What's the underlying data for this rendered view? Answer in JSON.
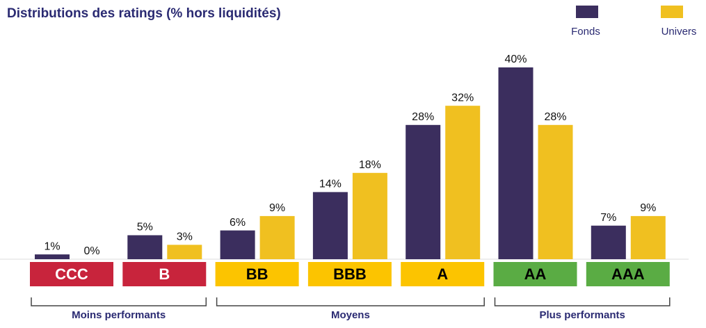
{
  "chart_data": {
    "type": "bar",
    "title": "Distributions des ratings (% hors liquidités)",
    "categories": [
      "CCC",
      "B",
      "BB",
      "BBB",
      "A",
      "AA",
      "AAA"
    ],
    "category_colors": [
      "#c8243c",
      "#c8243c",
      "#fcc400",
      "#fcc400",
      "#fcc400",
      "#5aac44",
      "#5aac44"
    ],
    "series": [
      {
        "name": "Fonds",
        "color": "#3b2e5e",
        "values": [
          1,
          5,
          6,
          14,
          28,
          40,
          7
        ],
        "value_labels": [
          "1%",
          "5%",
          "6%",
          "14%",
          "28%",
          "40%",
          "7%"
        ]
      },
      {
        "name": "Univers",
        "color": "#f0c020",
        "values": [
          0,
          3,
          9,
          18,
          32,
          28,
          9
        ],
        "value_labels": [
          "0%",
          "3%",
          "9%",
          "18%",
          "32%",
          "28%",
          "9%"
        ]
      }
    ],
    "groups": [
      {
        "name": "Moins performants",
        "categories": [
          "CCC",
          "B"
        ]
      },
      {
        "name": "Moyens",
        "categories": [
          "BB",
          "BBB",
          "A"
        ]
      },
      {
        "name": "Plus performants",
        "categories": [
          "AA",
          "AAA"
        ]
      }
    ],
    "legend": "top-right"
  }
}
